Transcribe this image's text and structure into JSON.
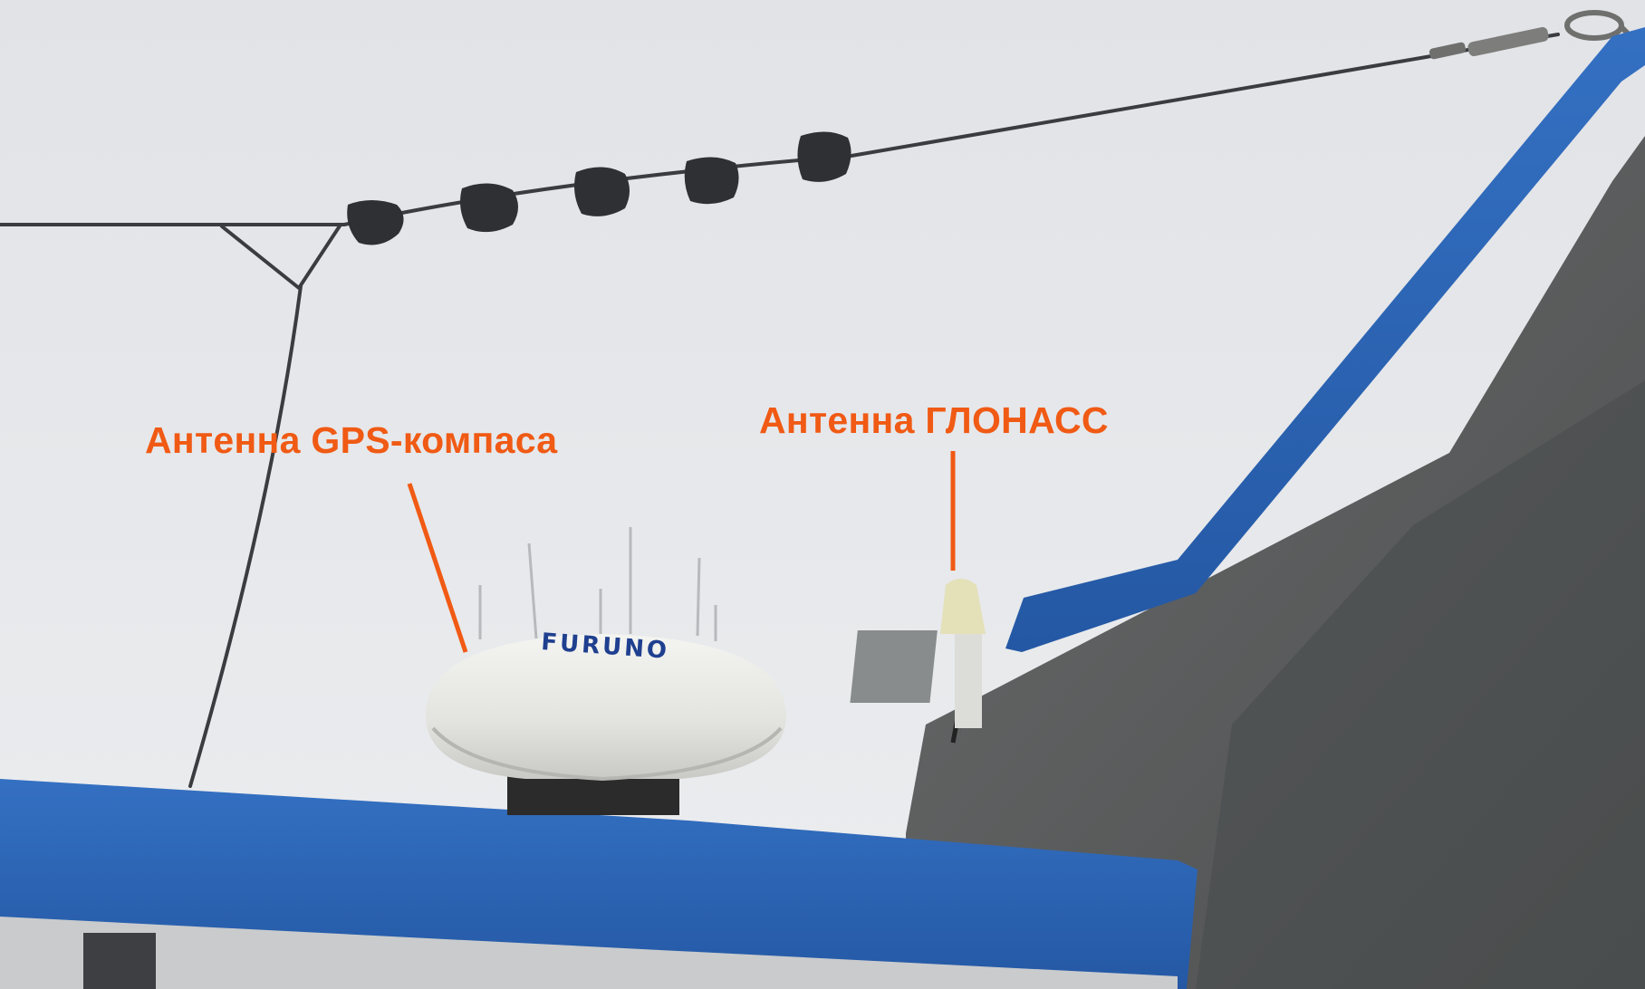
{
  "photo": {
    "annotations": {
      "gps_compass_antenna": "Антенна GPS-компаса",
      "glonass_antenna": "Антенна ГЛОНАСС"
    },
    "dome_brand": "FURUNO",
    "colors": {
      "annotation": "#f05a14",
      "sky": "#e6e8eb",
      "roof_blue": "#2c64b4",
      "dome_white": "#e9e9e6",
      "hull_grey": "#5c5e5e",
      "wire": "#3a3c40",
      "brand_text": "#1f3f8f"
    }
  }
}
